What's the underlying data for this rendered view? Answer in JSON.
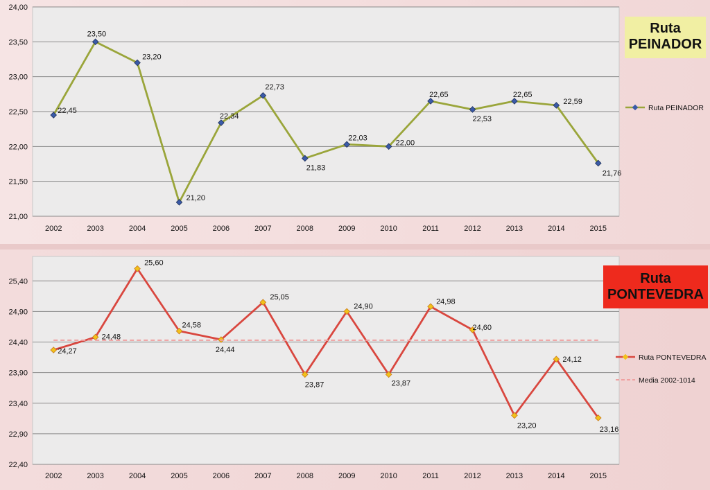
{
  "labels": {
    "peinador": {
      "line1": "Ruta",
      "line2": "PEINADOR"
    },
    "pontevedra": {
      "line1": "Ruta",
      "line2": "PONTEVEDRA"
    }
  },
  "colors": {
    "peinador_line": "#9aa53a",
    "peinador_marker": "#3a5aa8",
    "pontevedra_line": "#d9473f",
    "pontevedra_marker": "#f2c11b",
    "media_line": "#f0a0a0",
    "tag_peinador_bg": "#f1efa3",
    "tag_pontevedra_bg": "#ee2a1d"
  },
  "chart_data": [
    {
      "type": "line",
      "x": [
        "2002",
        "2003",
        "2004",
        "2005",
        "2006",
        "2007",
        "2008",
        "2009",
        "2010",
        "2011",
        "2012",
        "2013",
        "2014",
        "2015"
      ],
      "series": [
        {
          "name": "Ruta PEINADOR",
          "values": [
            22.45,
            23.5,
            23.2,
            21.2,
            22.34,
            22.73,
            21.83,
            22.03,
            22.0,
            22.65,
            22.53,
            22.65,
            22.59,
            21.76
          ]
        }
      ],
      "value_labels": [
        "22,45",
        "23,50",
        "23,20",
        "21,20",
        "22,34",
        "22,73",
        "21,83",
        "22,03",
        "22,00",
        "22,65",
        "22,53",
        "22,65",
        "22,59",
        "21,76"
      ],
      "yticks": [
        "21,00",
        "21,50",
        "22,00",
        "22,50",
        "23,00",
        "23,50",
        "24,00"
      ],
      "ylim": [
        21.0,
        24.0
      ],
      "legend": "right",
      "grid": true
    },
    {
      "type": "line",
      "x": [
        "2002",
        "2003",
        "2004",
        "2005",
        "2006",
        "2007",
        "2008",
        "2009",
        "2010",
        "2011",
        "2012",
        "2013",
        "2014",
        "2015"
      ],
      "series": [
        {
          "name": "Ruta PONTEVEDRA",
          "values": [
            24.27,
            24.48,
            25.6,
            24.58,
            24.44,
            25.05,
            23.87,
            24.9,
            23.87,
            24.98,
            24.6,
            23.2,
            24.12,
            23.16
          ]
        },
        {
          "name": "Media 2002-1014",
          "values": [
            24.43,
            24.43,
            24.43,
            24.43,
            24.43,
            24.43,
            24.43,
            24.43,
            24.43,
            24.43,
            24.43,
            24.43,
            24.43,
            24.43
          ],
          "dashed": true
        }
      ],
      "value_labels": [
        "24,27",
        "24,48",
        "25,60",
        "24,58",
        "24,44",
        "25,05",
        "23,87",
        "24,90",
        "23,87",
        "24,98",
        "24,60",
        "23,20",
        "24,12",
        "23,16"
      ],
      "yticks": [
        "22,40",
        "22,90",
        "23,40",
        "23,90",
        "24,40",
        "24,90",
        "25,40"
      ],
      "ylim": [
        22.4,
        25.8
      ],
      "legend": "right",
      "grid": true
    }
  ]
}
